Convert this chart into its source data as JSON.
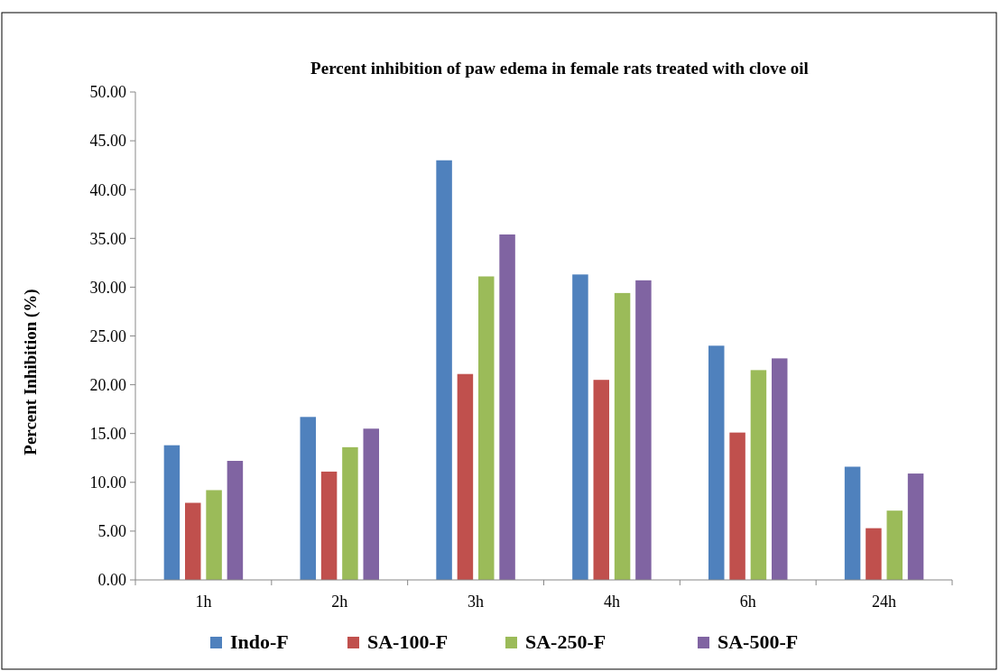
{
  "chart_data": {
    "type": "bar",
    "title": "Percent inhibition of paw edema in female rats treated with clove oil",
    "ylabel": "Percent Inhibition (%)",
    "categories": [
      "1h",
      "2h",
      "3h",
      "4h",
      "6h",
      "24h"
    ],
    "series": [
      {
        "name": "Indo-F",
        "color": "#4f81bd",
        "values": [
          13.8,
          16.7,
          43.0,
          31.3,
          24.0,
          11.6
        ]
      },
      {
        "name": "SA-100-F",
        "color": "#c0504d",
        "values": [
          7.9,
          11.1,
          21.1,
          20.5,
          15.1,
          5.3
        ]
      },
      {
        "name": "SA-250-F",
        "color": "#9bbb59",
        "values": [
          9.2,
          13.6,
          31.1,
          29.4,
          21.5,
          7.1
        ]
      },
      {
        "name": "SA-500-F",
        "color": "#8064a2",
        "values": [
          12.2,
          15.5,
          35.4,
          30.7,
          22.7,
          10.9
        ]
      }
    ],
    "ylim": [
      0,
      50
    ],
    "yticks": [
      {
        "value": 0,
        "label": "0.00"
      },
      {
        "value": 5,
        "label": "5.00"
      },
      {
        "value": 10,
        "label": "10.00"
      },
      {
        "value": 15,
        "label": "15.00"
      },
      {
        "value": 20,
        "label": "20.00"
      },
      {
        "value": 25,
        "label": "25.00"
      },
      {
        "value": 30,
        "label": "30.00"
      },
      {
        "value": 35,
        "label": "35.00"
      },
      {
        "value": 40,
        "label": "40.00"
      },
      {
        "value": 45,
        "label": "45.00"
      },
      {
        "value": 50,
        "label": "50.00"
      }
    ],
    "grid": false,
    "legend": "bottom"
  }
}
